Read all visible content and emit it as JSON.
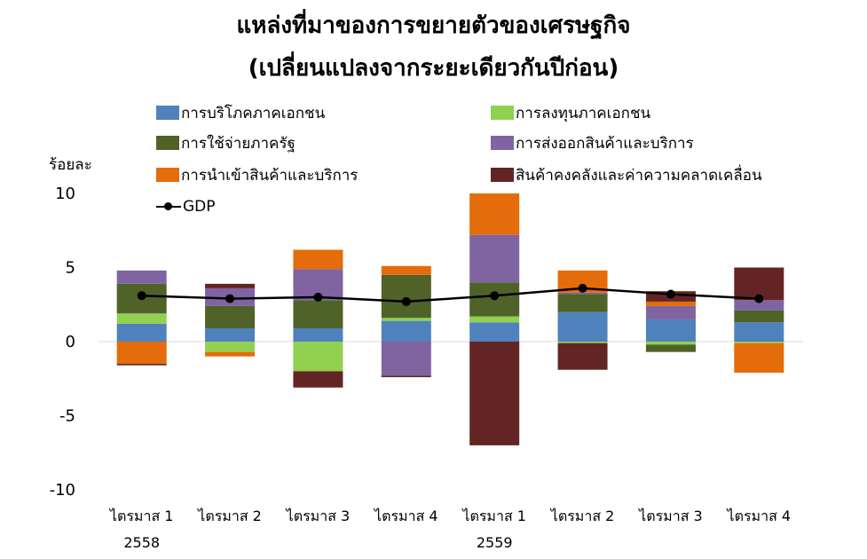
{
  "title_line1": "แหล่งที่มาของการขยายตัวของเศรษฐกิจ",
  "title_line2": "(เปลี่ยนแปลงจากระยะเดียวกันปีก่อน)",
  "chart_data": {
    "type": "bar",
    "stacked": true,
    "ylabel": "ร้อยละ",
    "ylim": [
      -10,
      10
    ],
    "yticks": [
      10,
      5,
      0,
      -5,
      -10
    ],
    "categories": [
      "ไตรมาส 1",
      "ไตรมาส 2",
      "ไตรมาส 3",
      "ไตรมาส 4",
      "ไตรมาส 1",
      "ไตรมาส 2",
      "ไตรมาส 3",
      "ไตรมาส 4"
    ],
    "year_labels": [
      {
        "category_index": 0,
        "label": "2558"
      },
      {
        "category_index": 4,
        "label": "2559"
      }
    ],
    "series": [
      {
        "name": "การบริโภคภาคเอกชน",
        "color": "#4f81bd",
        "values": [
          1.2,
          0.9,
          0.9,
          1.4,
          1.3,
          2.0,
          1.5,
          1.3
        ]
      },
      {
        "name": "การลงทุนภาคเอกชน",
        "color": "#92d050",
        "values": [
          0.7,
          -0.7,
          -2.0,
          0.2,
          0.4,
          -0.1,
          -0.2,
          -0.1
        ]
      },
      {
        "name": "การใช้จ่ายภาครัฐ",
        "color": "#4f6228",
        "values": [
          2.0,
          1.5,
          1.9,
          2.9,
          2.3,
          1.2,
          -0.5,
          0.8
        ]
      },
      {
        "name": "การส่งออกสินค้าและบริการ",
        "color": "#8064a2",
        "values": [
          0.9,
          1.2,
          2.1,
          -2.3,
          3.2,
          0.1,
          0.9,
          0.7
        ]
      },
      {
        "name": "การนำเข้าสินค้าและบริการ",
        "color": "#e46c0a",
        "values": [
          -1.5,
          -0.3,
          1.3,
          0.6,
          2.8,
          1.5,
          0.3,
          -2.0
        ]
      },
      {
        "name": "สินค้าคงคลังและค่าความคลาดเคลื่อน",
        "color": "#632523",
        "values": [
          -0.1,
          0.3,
          -1.1,
          -0.1,
          -7.0,
          -1.8,
          0.7,
          2.2
        ]
      }
    ],
    "gdp": {
      "name": "GDP",
      "color": "#000000",
      "values": [
        3.1,
        2.9,
        3.0,
        2.7,
        3.1,
        3.6,
        3.2,
        2.9
      ]
    }
  }
}
